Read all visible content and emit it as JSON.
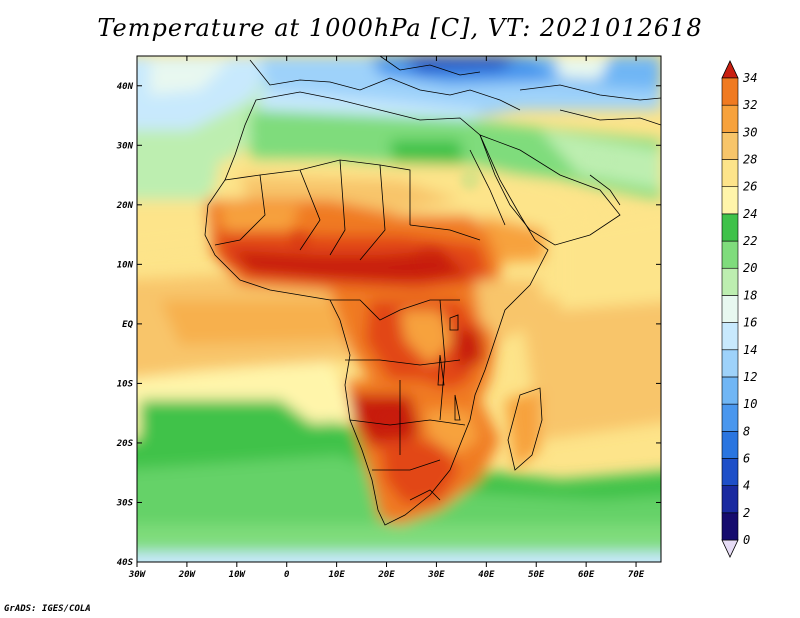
{
  "title": "Temperature at 1000hPa [C], VT: 2021012618",
  "credit": "GrADS: IGES/COLA",
  "axes": {
    "x_labels": [
      "30W",
      "20W",
      "10W",
      "0",
      "10E",
      "20E",
      "30E",
      "40E",
      "50E",
      "60E",
      "70E"
    ],
    "y_labels": [
      "40N",
      "30N",
      "20N",
      "10N",
      "EQ",
      "10S",
      "20S",
      "30S",
      "40S"
    ]
  },
  "colorbar": {
    "levels": [
      "0",
      "2",
      "4",
      "6",
      "8",
      "10",
      "12",
      "14",
      "16",
      "18",
      "20",
      "22",
      "24",
      "26",
      "28",
      "30",
      "32",
      "34"
    ],
    "colors": [
      "#160c6e",
      "#1a2aa0",
      "#1e4fc8",
      "#2a75e0",
      "#4a97ee",
      "#70b6f5",
      "#9ed2fa",
      "#c8e9fd",
      "#e8f8f0",
      "#bdeeb0",
      "#7fdc7c",
      "#3fc24a",
      "#fff5aa",
      "#fde48a",
      "#f8c56a",
      "#f7a23c",
      "#f07a20",
      "#e24718",
      "#c81f10"
    ]
  }
}
